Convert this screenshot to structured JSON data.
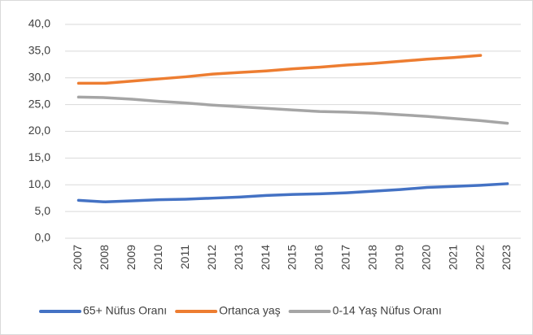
{
  "chart_data": {
    "type": "line",
    "categories": [
      "2007",
      "2008",
      "2009",
      "2010",
      "2011",
      "2012",
      "2013",
      "2014",
      "2015",
      "2016",
      "2017",
      "2018",
      "2019",
      "2020",
      "2021",
      "2022",
      "2023"
    ],
    "series": [
      {
        "name": "65+ Nüfus Oranı",
        "color": "#4472c4",
        "values": [
          7.1,
          6.8,
          7.0,
          7.2,
          7.3,
          7.5,
          7.7,
          8.0,
          8.2,
          8.3,
          8.5,
          8.8,
          9.1,
          9.5,
          9.7,
          9.9,
          10.2
        ]
      },
      {
        "name": "Ortanca yaş",
        "color": "#ed7d31",
        "values": [
          29.0,
          29.0,
          29.4,
          29.8,
          30.2,
          30.7,
          31.0,
          31.3,
          31.7,
          32.0,
          32.4,
          32.7,
          33.1,
          33.5,
          33.8,
          34.2,
          null
        ]
      },
      {
        "name": "0-14 Yaş Nüfus Oranı",
        "color": "#a5a5a5",
        "values": [
          26.4,
          26.3,
          26.0,
          25.6,
          25.3,
          24.9,
          24.6,
          24.3,
          24.0,
          23.7,
          23.6,
          23.4,
          23.1,
          22.8,
          22.4,
          22.0,
          21.5
        ]
      }
    ],
    "ylim": [
      0,
      40
    ],
    "yticks": [
      {
        "value": 0,
        "label": "0,0"
      },
      {
        "value": 5,
        "label": "5,0"
      },
      {
        "value": 10,
        "label": "10,0"
      },
      {
        "value": 15,
        "label": "15,0"
      },
      {
        "value": 20,
        "label": "20,0"
      },
      {
        "value": 25,
        "label": "25,0"
      },
      {
        "value": 30,
        "label": "30,0"
      },
      {
        "value": 35,
        "label": "35,0"
      },
      {
        "value": 40,
        "label": "40,0"
      }
    ],
    "grid": true,
    "legend": "bottom"
  }
}
